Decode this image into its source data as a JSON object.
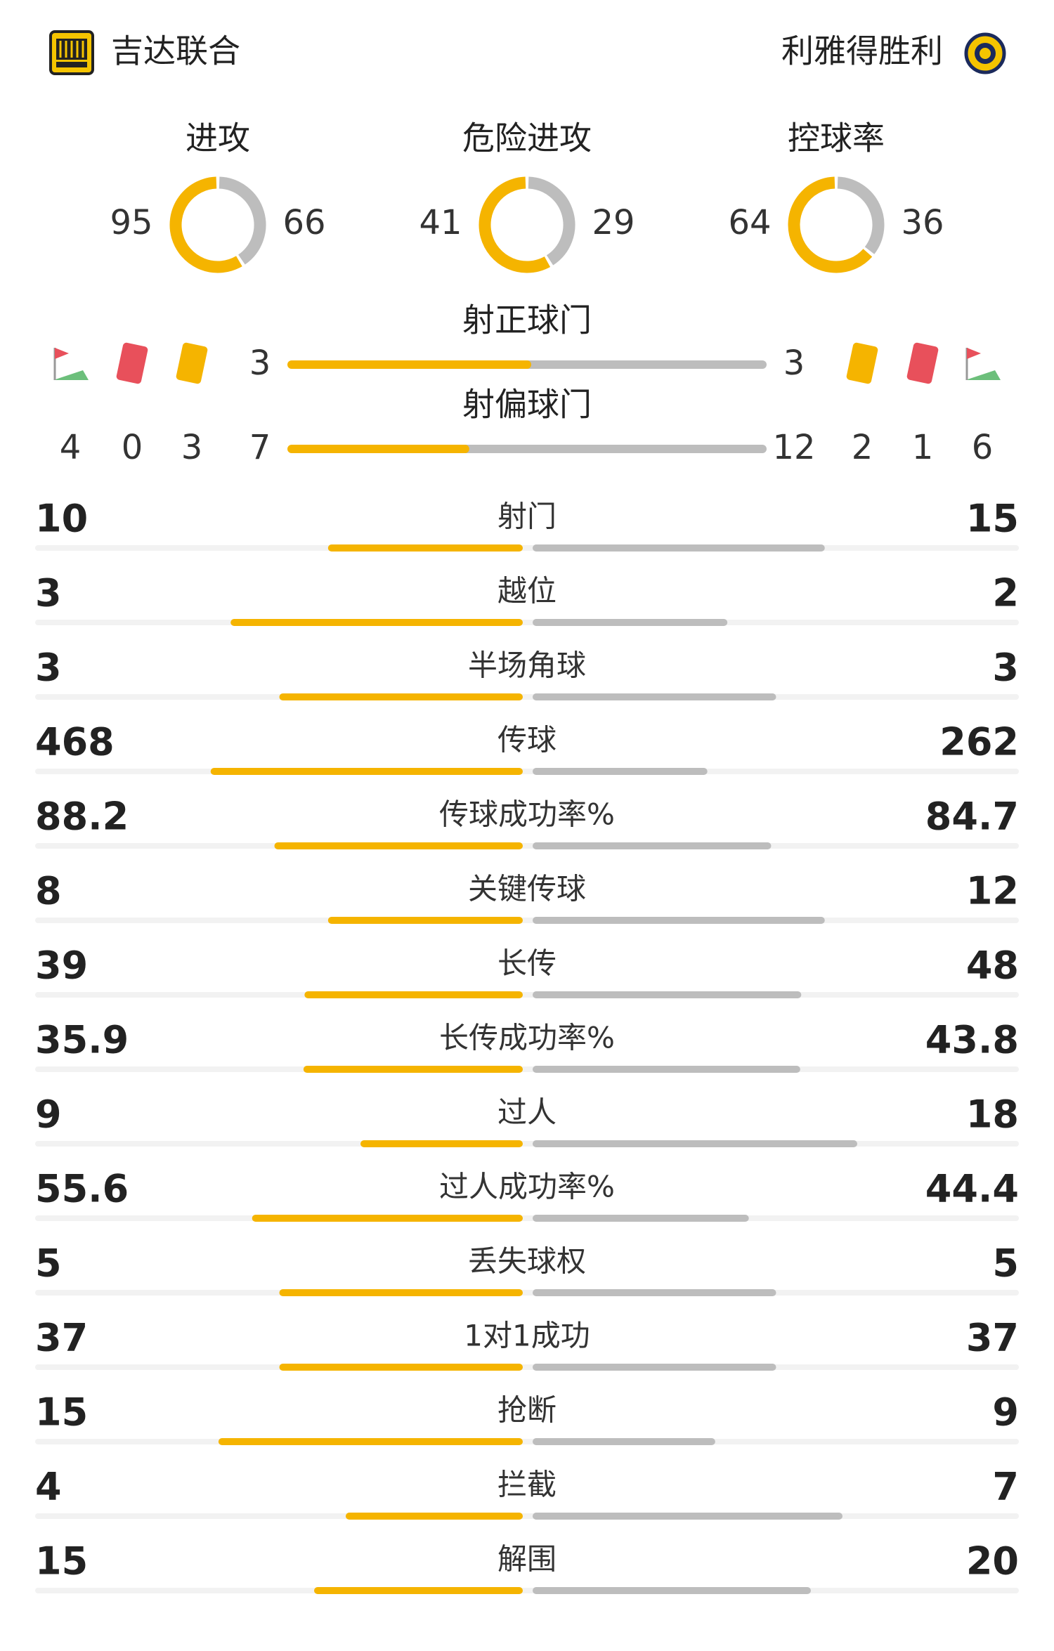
{
  "home": {
    "name": "吉达联合"
  },
  "away": {
    "name": "利雅得胜利"
  },
  "rings": [
    {
      "label": "进攻",
      "home": 95,
      "away": 66
    },
    {
      "label": "危险进攻",
      "home": 41,
      "away": 29
    },
    {
      "label": "控球率",
      "home": 64,
      "away": 36
    }
  ],
  "shots_on_target": {
    "label": "射正球门",
    "home": 3,
    "away": 3
  },
  "shots_off_target": {
    "label": "射偏球门",
    "home": 7,
    "away": 12
  },
  "home_events": {
    "corners": 4,
    "red_cards": 0,
    "yellow_cards": 3
  },
  "away_events": {
    "yellow_cards": 2,
    "red_cards": 1,
    "corners": 6
  },
  "stats": [
    {
      "label": "射门",
      "home": 10,
      "away": 15
    },
    {
      "label": "越位",
      "home": 3,
      "away": 2
    },
    {
      "label": "半场角球",
      "home": 3,
      "away": 3
    },
    {
      "label": "传球",
      "home": 468,
      "away": 262
    },
    {
      "label": "传球成功率%",
      "home": 88.2,
      "away": 84.7
    },
    {
      "label": "关键传球",
      "home": 8,
      "away": 12
    },
    {
      "label": "长传",
      "home": 39,
      "away": 48
    },
    {
      "label": "长传成功率%",
      "home": 35.9,
      "away": 43.8
    },
    {
      "label": "过人",
      "home": 9,
      "away": 18
    },
    {
      "label": "过人成功率%",
      "home": 55.6,
      "away": 44.4
    },
    {
      "label": "丢失球权",
      "home": 5,
      "away": 5
    },
    {
      "label": "1对1成功",
      "home": 37,
      "away": 37
    },
    {
      "label": "抢断",
      "home": 15,
      "away": 9
    },
    {
      "label": "拦截",
      "home": 4,
      "away": 7
    },
    {
      "label": "解围",
      "home": 15,
      "away": 20
    }
  ]
}
